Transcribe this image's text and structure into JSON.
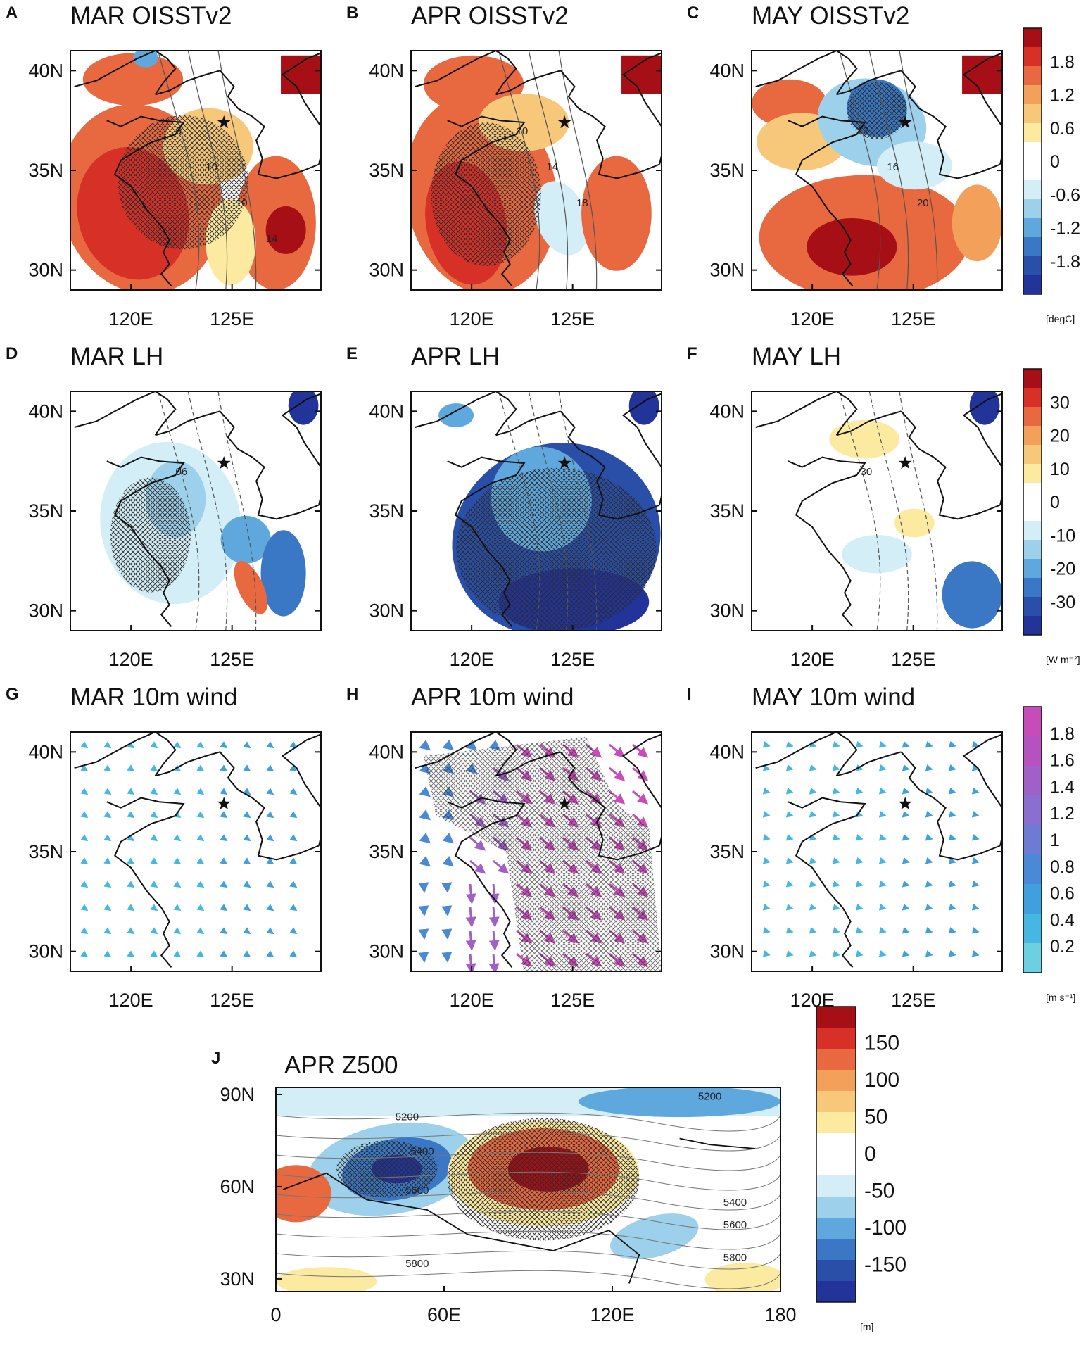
{
  "figure": {
    "panels": [
      {
        "letter": "A",
        "title": "MAR OISSTv2",
        "field": "sst",
        "month": "MAR",
        "contour_labels": [
          "6",
          "10",
          "10",
          "14"
        ]
      },
      {
        "letter": "B",
        "title": "APR OISSTv2",
        "field": "sst",
        "month": "APR",
        "contour_labels": [
          "10",
          "14",
          "18"
        ]
      },
      {
        "letter": "C",
        "title": "MAY OISSTv2",
        "field": "sst",
        "month": "MAY",
        "contour_labels": [
          "12",
          "16",
          "20"
        ]
      },
      {
        "letter": "D",
        "title": "MAR LH",
        "field": "lh",
        "month": "MAR",
        "contour_labels": [
          "06"
        ]
      },
      {
        "letter": "E",
        "title": "APR LH",
        "field": "lh",
        "month": "APR",
        "contour_labels": []
      },
      {
        "letter": "F",
        "title": "MAY LH",
        "field": "lh",
        "month": "MAY",
        "contour_labels": [
          "-30"
        ]
      },
      {
        "letter": "G",
        "title": "MAR 10m wind",
        "field": "wind",
        "month": "MAR",
        "contour_labels": []
      },
      {
        "letter": "H",
        "title": "APR 10m wind",
        "field": "wind",
        "month": "APR",
        "contour_labels": []
      },
      {
        "letter": "I",
        "title": "MAY 10m wind",
        "field": "wind",
        "month": "MAY",
        "contour_labels": []
      }
    ],
    "regional_axes": {
      "y_ticks": [
        "40N",
        "35N",
        "30N"
      ],
      "x_ticks": [
        "120E",
        "125E"
      ]
    },
    "colorbars": [
      {
        "id": "sst",
        "unit": "[degC]",
        "labels": [
          "1.8",
          "1.2",
          "0.6",
          "0",
          "-0.6",
          "-1.2",
          "-1.8"
        ]
      },
      {
        "id": "lh",
        "unit": "[W m⁻²]",
        "labels": [
          "30",
          "20",
          "10",
          "0",
          "-10",
          "-20",
          "-30"
        ]
      },
      {
        "id": "wind",
        "unit": "[m s⁻¹]",
        "labels": [
          "1.8",
          "1.6",
          "1.4",
          "1.2",
          "1",
          "0.8",
          "0.6",
          "0.4",
          "0.2"
        ]
      }
    ],
    "z500": {
      "letter": "J",
      "title": "APR Z500",
      "y_ticks": [
        "90N",
        "60N",
        "30N"
      ],
      "x_ticks": [
        "0",
        "60E",
        "120E",
        "180"
      ],
      "contour_labels": [
        "5200",
        "5200",
        "5400",
        "5600",
        "5400",
        "5600",
        "5800",
        "5800"
      ],
      "colorbar": {
        "unit": "[m]",
        "labels": [
          "150",
          "100",
          "50",
          "0",
          "-50",
          "-100",
          "-150"
        ]
      }
    }
  },
  "colors": {
    "red_scale": [
      "#fbeaa0",
      "#f7c77a",
      "#f2a05a",
      "#e8683f",
      "#d73027",
      "#a50f15"
    ],
    "blue_scale": [
      "#d4eef7",
      "#9dd0ea",
      "#5fa8de",
      "#3a77c4",
      "#2a4fa8",
      "#22339a"
    ],
    "wind_scale": [
      "#6cd0e2",
      "#46b7e2",
      "#3ea0dc",
      "#4a89d6",
      "#6d7cd2",
      "#8a6ed0",
      "#a15fc8",
      "#b652c0",
      "#c84bba"
    ],
    "land_line": "#111111"
  }
}
